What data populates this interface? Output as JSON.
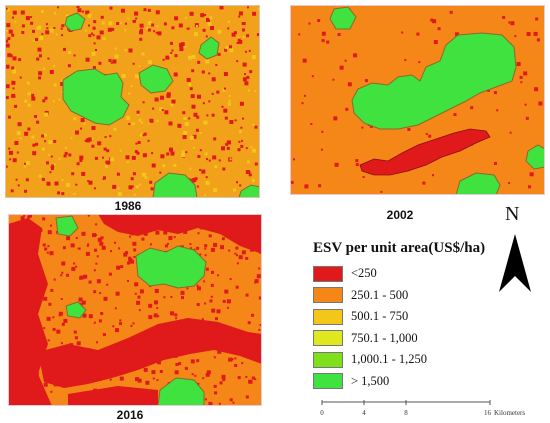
{
  "maps": [
    {
      "year": "1986"
    },
    {
      "year": "2002"
    },
    {
      "year": "2016"
    }
  ],
  "legend": {
    "title": "ESV per unit area(US$/ha)",
    "items": [
      {
        "label": "<250",
        "color": "#e0191b"
      },
      {
        "label": "250.1 - 500",
        "color": "#f58618"
      },
      {
        "label": "500.1 - 750",
        "color": "#f3c61a"
      },
      {
        "label": "750.1 - 1,000",
        "color": "#dfe81e"
      },
      {
        "label": "1,000.1 - 1,250",
        "color": "#7ee01c"
      },
      {
        "label": "> 1,500",
        "color": "#3fe23f"
      }
    ]
  },
  "north_arrow": {
    "letter": "N"
  },
  "scale": {
    "ticks": [
      "0",
      "4",
      "8",
      "16"
    ],
    "unit": "Kilometers"
  }
}
